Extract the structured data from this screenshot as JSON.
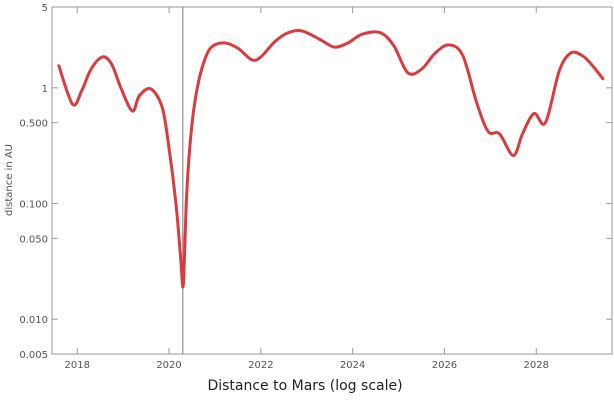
{
  "chart_data": {
    "type": "line",
    "title": "Distance to Mars (log scale)",
    "xlabel": "",
    "ylabel": "distance in AU",
    "x_scale": "linear",
    "y_scale": "log",
    "xlim": [
      2017.45,
      2029.65
    ],
    "ylim": [
      0.005,
      5
    ],
    "x_ticks": [
      2018,
      2020,
      2022,
      2024,
      2026,
      2028
    ],
    "x_tick_labels": [
      "2018",
      "2020",
      "2022",
      "2024",
      "2026",
      "2028"
    ],
    "y_ticks": [
      0.005,
      0.01,
      0.05,
      0.1,
      0.5,
      1,
      5
    ],
    "y_tick_labels": [
      "0.005",
      "0.010",
      "0.050",
      "0.100",
      "0.500",
      "1",
      "5"
    ],
    "grid": false,
    "line_color": "#d93b3f",
    "marker_color": "#7a7a7a",
    "marker_x": 2020.3,
    "series": [
      {
        "x": [
          2017.6,
          2017.9,
          2018.1,
          2018.3,
          2018.55,
          2018.75,
          2018.95,
          2019.2,
          2019.35,
          2019.6,
          2019.85,
          2020.0,
          2020.15,
          2020.25,
          2020.3,
          2020.33,
          2020.38,
          2020.45,
          2020.55,
          2020.7,
          2020.9,
          2021.2,
          2021.5,
          2021.8,
          2022.0,
          2022.3,
          2022.6,
          2022.9,
          2023.3,
          2023.6,
          2023.9,
          2024.2,
          2024.6,
          2024.9,
          2025.2,
          2025.5,
          2025.8,
          2026.1,
          2026.4,
          2026.7,
          2026.95,
          2027.2,
          2027.5,
          2027.7,
          2027.95,
          2028.2,
          2028.5,
          2028.75,
          2029.0,
          2029.2,
          2029.45
        ],
        "y": [
          1.55,
          0.72,
          0.95,
          1.45,
          1.85,
          1.6,
          1.0,
          0.63,
          0.85,
          0.98,
          0.68,
          0.3,
          0.1,
          0.035,
          0.019,
          0.03,
          0.11,
          0.3,
          0.7,
          1.4,
          2.2,
          2.45,
          2.2,
          1.75,
          1.85,
          2.5,
          3.0,
          3.1,
          2.6,
          2.25,
          2.45,
          2.9,
          3.0,
          2.3,
          1.35,
          1.45,
          2.0,
          2.35,
          1.9,
          0.75,
          0.42,
          0.4,
          0.26,
          0.4,
          0.6,
          0.5,
          1.4,
          2.0,
          1.9,
          1.6,
          1.2
        ]
      }
    ]
  }
}
